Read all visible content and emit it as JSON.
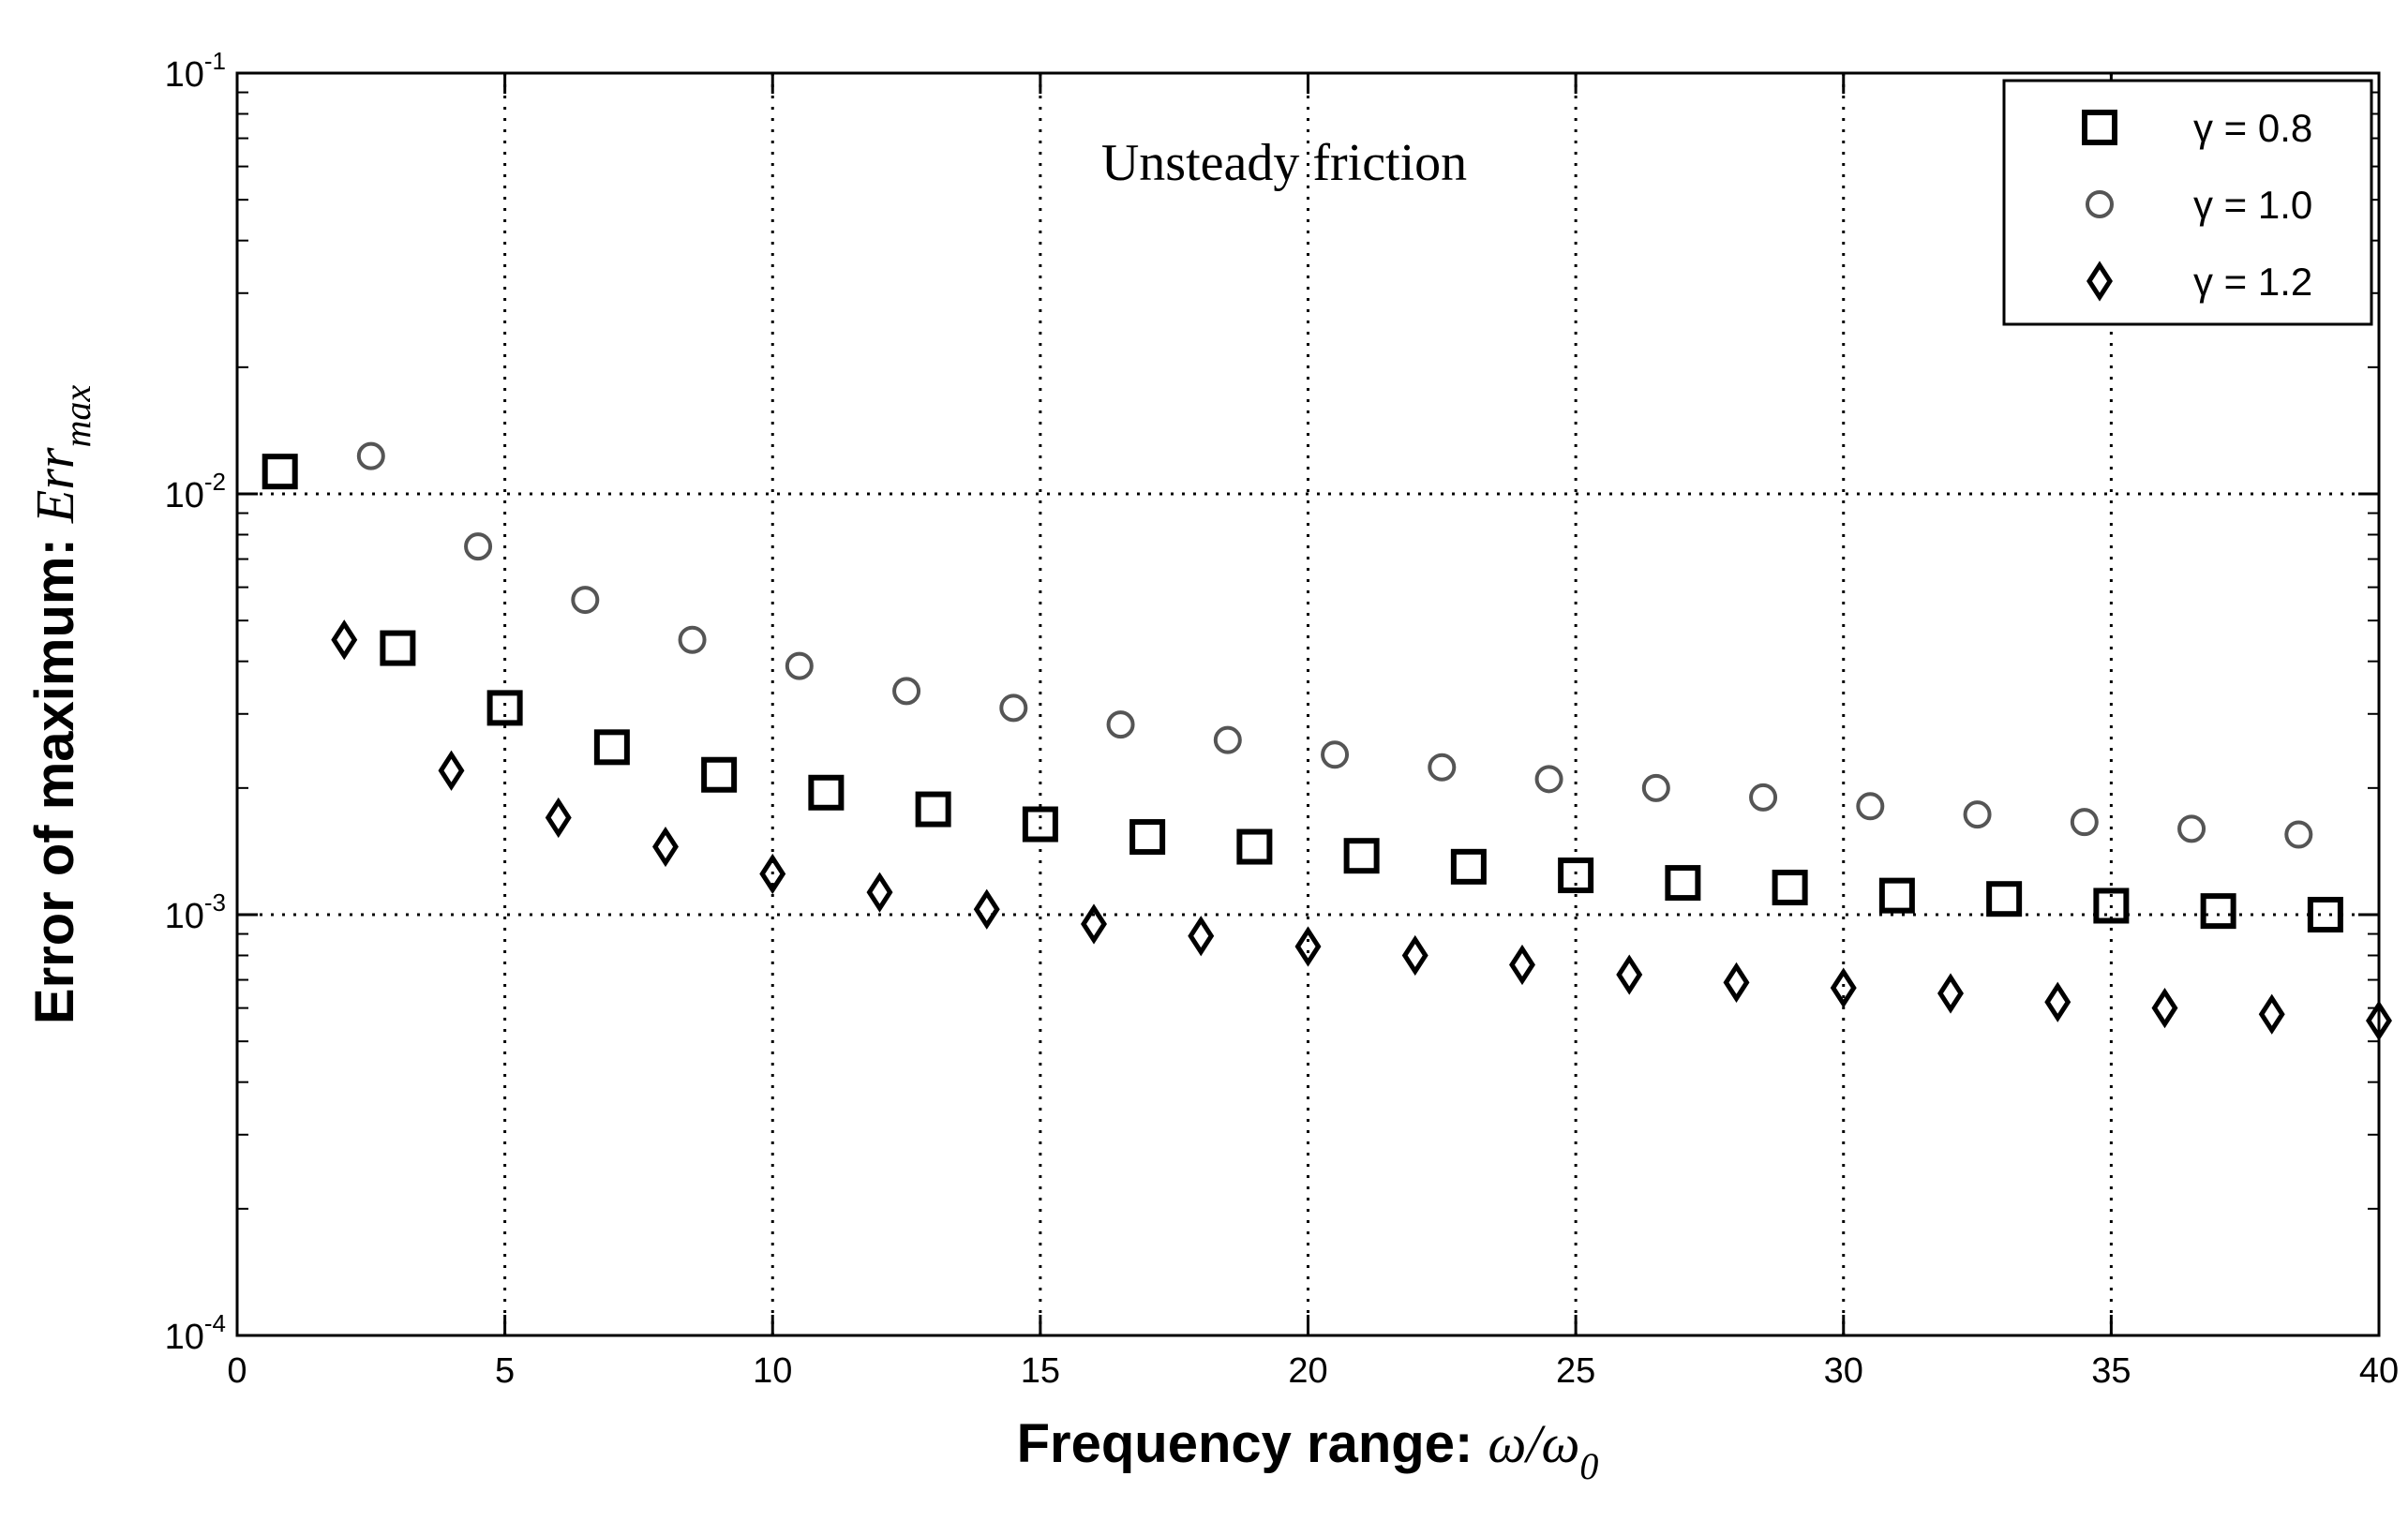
{
  "chart_data": {
    "type": "scatter",
    "title": "",
    "annotation": "Unsteady friction",
    "xlabel": {
      "text": "Frequency range: ",
      "math": "ω/ω",
      "sub": "0"
    },
    "ylabel": {
      "text": "Error of maximum: ",
      "math": "Err",
      "sub": "max"
    },
    "xlim": [
      0,
      40
    ],
    "ylim": [
      0.0001,
      0.1
    ],
    "yscale": "log",
    "x_ticks": [
      "0",
      "5",
      "10",
      "15",
      "20",
      "25",
      "30",
      "35",
      "40"
    ],
    "y_ticks": [
      {
        "base": "10",
        "exp": "-4"
      },
      {
        "base": "10",
        "exp": "-3"
      },
      {
        "base": "10",
        "exp": "-2"
      },
      {
        "base": "10",
        "exp": "-1"
      }
    ],
    "grid": true,
    "legend_position": "top-right",
    "series": [
      {
        "name": "γ = 0.8",
        "marker": "square",
        "color": "#000000",
        "x": [
          0.8,
          3,
          5,
          7,
          9,
          11,
          13,
          15,
          17,
          19,
          21,
          23,
          25,
          27,
          29,
          31,
          33,
          35,
          37,
          39
        ],
        "y": [
          0.0113,
          0.0043,
          0.0031,
          0.0025,
          0.00215,
          0.00195,
          0.00178,
          0.00164,
          0.00153,
          0.00145,
          0.00138,
          0.0013,
          0.00124,
          0.00119,
          0.00116,
          0.00111,
          0.00109,
          0.00105,
          0.00102,
          0.001
        ]
      },
      {
        "name": "γ = 1.0",
        "marker": "circle",
        "color": "#555555",
        "x": [
          2.5,
          4.5,
          6.5,
          8.5,
          10.5,
          12.5,
          14.5,
          16.5,
          18.5,
          20.5,
          22.5,
          24.5,
          26.5,
          28.5,
          30.5,
          32.5,
          34.5,
          36.5,
          38.5
        ],
        "y": [
          0.0123,
          0.0075,
          0.0056,
          0.0045,
          0.0039,
          0.0034,
          0.0031,
          0.00283,
          0.0026,
          0.0024,
          0.00224,
          0.0021,
          0.002,
          0.0019,
          0.00181,
          0.00173,
          0.00166,
          0.0016,
          0.00155
        ]
      },
      {
        "name": "γ = 1.2",
        "marker": "diamond",
        "color": "#000000",
        "x": [
          2,
          4,
          6,
          8,
          10,
          12,
          14,
          16,
          18,
          20,
          22,
          24,
          26,
          28,
          30,
          32,
          34,
          36,
          38,
          40
        ],
        "y": [
          0.0045,
          0.0022,
          0.0017,
          0.00145,
          0.00125,
          0.00113,
          0.00103,
          0.00095,
          0.00089,
          0.00084,
          0.0008,
          0.00076,
          0.00072,
          0.00069,
          0.00067,
          0.00065,
          0.00062,
          0.0006,
          0.00058,
          0.00056
        ]
      }
    ]
  }
}
